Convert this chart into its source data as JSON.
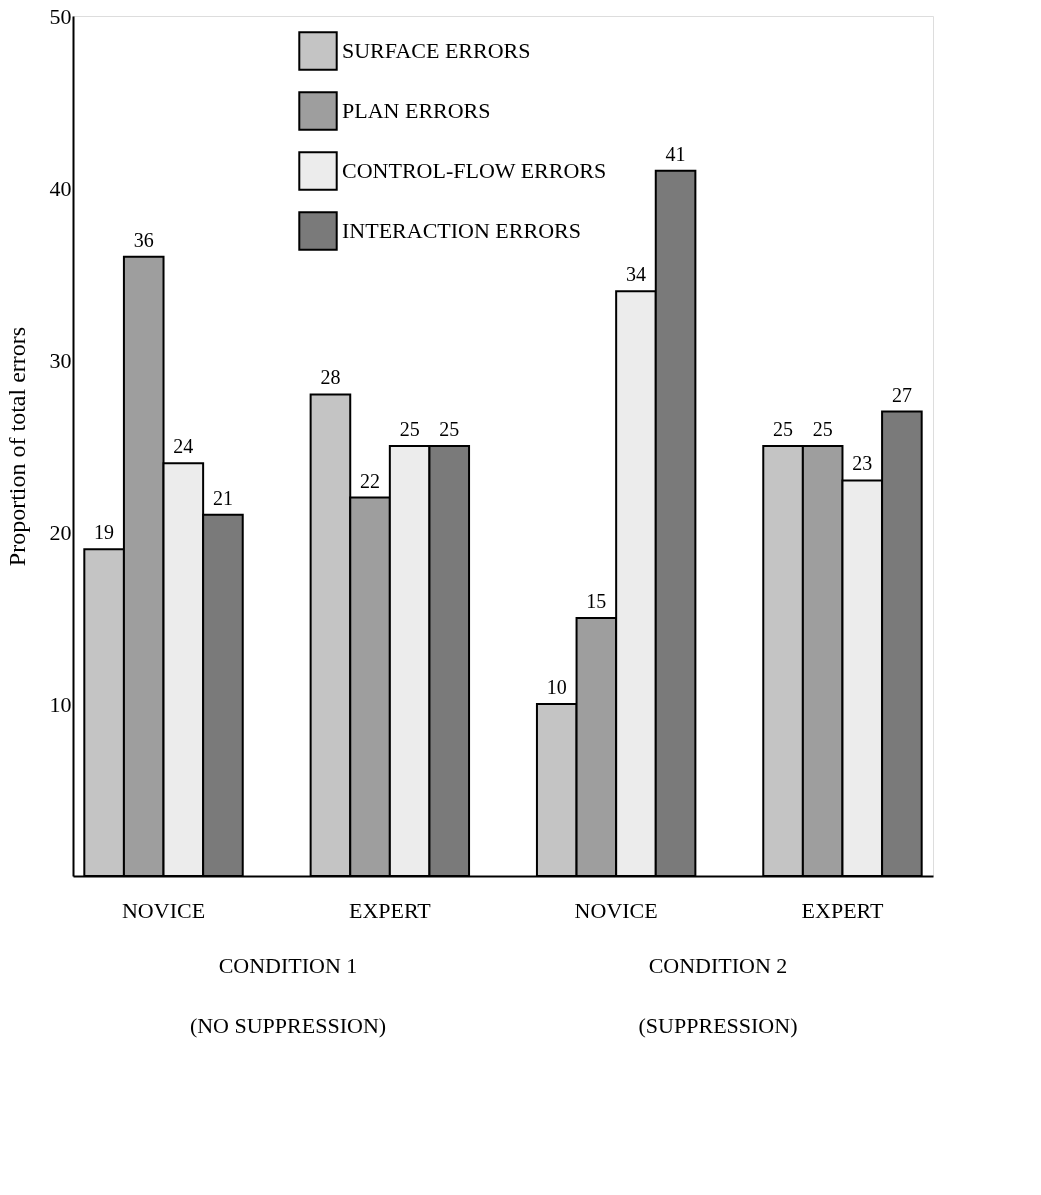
{
  "chart_data": {
    "type": "bar",
    "ylabel": "Proportion of total errors",
    "categories": [
      "NOVICE",
      "EXPERT",
      "NOVICE",
      "EXPERT"
    ],
    "series": [
      {
        "name": "SURFACE ERRORS",
        "color": "#c4c4c4",
        "values": [
          19,
          28,
          10,
          25
        ]
      },
      {
        "name": "PLAN ERRORS",
        "color": "#9e9e9e",
        "values": [
          36,
          22,
          15,
          25
        ]
      },
      {
        "name": "CONTROL-FLOW ERRORS",
        "color": "#ececec",
        "values": [
          24,
          25,
          34,
          23
        ]
      },
      {
        "name": "INTERACTION ERRORS",
        "color": "#7a7a7a",
        "values": [
          21,
          25,
          41,
          27
        ]
      }
    ],
    "ylim": [
      0,
      50
    ],
    "yticks": [
      10,
      20,
      30,
      40,
      50
    ],
    "data_labels": true,
    "legend": "top left",
    "grid": false,
    "annotations": [
      "CONDITION 1",
      "(NO SUPPRESSION)",
      "CONDITION 2",
      "(SUPPRESSION)"
    ]
  }
}
